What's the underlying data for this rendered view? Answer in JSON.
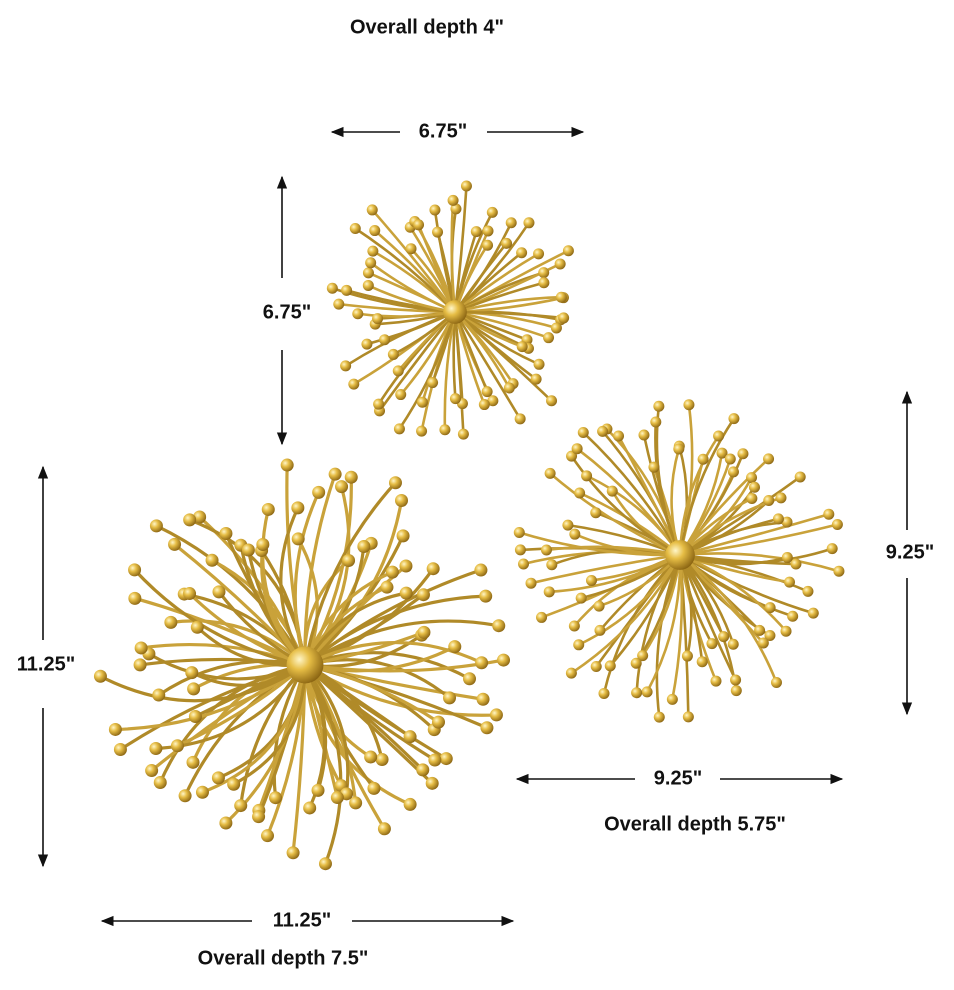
{
  "pieces": [
    {
      "depth": "Overall depth 4\"",
      "width": "6.75\"",
      "height": "6.75\""
    },
    {
      "depth": "Overall depth 7.5\"",
      "width": "11.25\"",
      "height": "11.25\""
    },
    {
      "depth": "Overall depth 5.75\"",
      "width": "9.25\"",
      "height": "9.25\""
    }
  ]
}
